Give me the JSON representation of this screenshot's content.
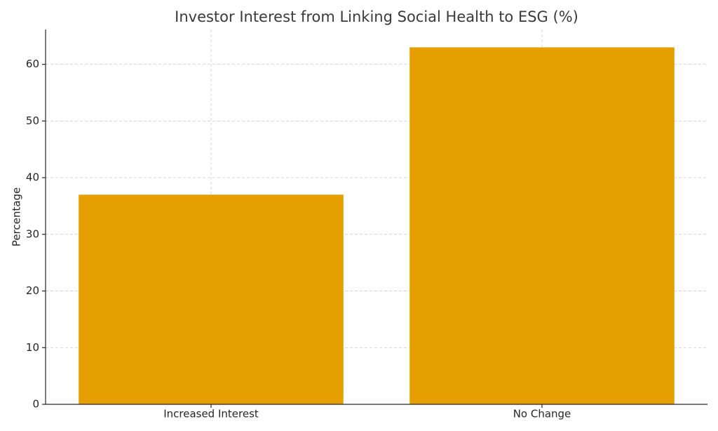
{
  "chart_data": {
    "type": "bar",
    "title": "Investor Interest from Linking Social Health to ESG (%)",
    "y_label": "Percentage",
    "categories": [
      "Increased Interest",
      "No Change"
    ],
    "values": [
      37,
      63
    ],
    "color": "#e69f00",
    "ylim": [
      0,
      66.15
    ],
    "yticks": [
      0,
      10,
      20,
      30,
      40,
      50,
      60
    ],
    "grid": true
  }
}
